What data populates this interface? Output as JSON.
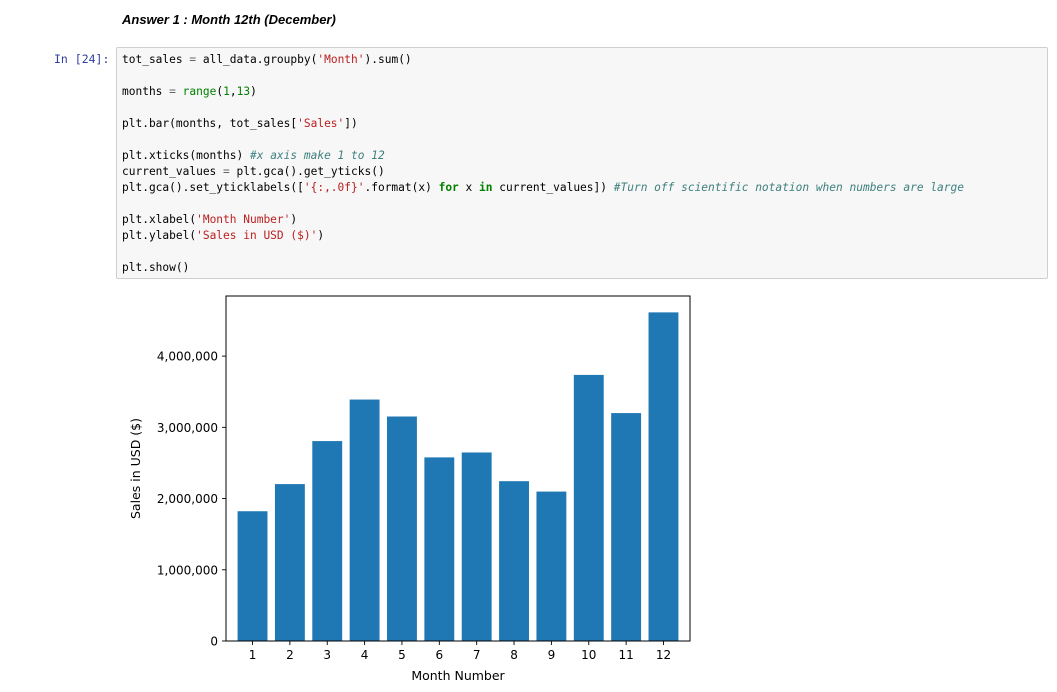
{
  "notebook": {
    "heading": "Answer 1 : Month 12th (December)",
    "prompt": "In [24]:",
    "code": {
      "l1_a": "tot_sales ",
      "l1_eq": "=",
      "l1_b": " all_data.groupby(",
      "l1_str": "'Month'",
      "l1_c": ").sum()",
      "l2_a": "months ",
      "l2_eq": "=",
      "l2_sp": " ",
      "l2_fn": "range",
      "l2_c": "(",
      "l2_n1": "1",
      "l2_comma": ",",
      "l2_n2": "13",
      "l2_d": ")",
      "l3_a": "plt.bar(months, tot_sales[",
      "l3_str": "'Sales'",
      "l3_b": "])",
      "l4_a": "plt.xticks(months) ",
      "l4_cm": "#x axis make 1 to 12",
      "l5_a": "current_values ",
      "l5_eq": "=",
      "l5_b": " plt.gca().get_yticks()",
      "l6_a": "plt.gca().set_yticklabels([",
      "l6_str": "'{:,.0f}'",
      "l6_b": ".format(x) ",
      "l6_for": "for",
      "l6_c": " x ",
      "l6_in": "in",
      "l6_d": " current_values]) ",
      "l6_cm": "#Turn off scientific notation when numbers are large",
      "l7_a": "plt.xlabel(",
      "l7_str": "'Month Number'",
      "l7_b": ")",
      "l8_a": "plt.ylabel(",
      "l8_str": "'Sales in USD ($)'",
      "l8_b": ")",
      "l9_a": "plt.show()"
    }
  },
  "chart_data": {
    "type": "bar",
    "categories": [
      "1",
      "2",
      "3",
      "4",
      "5",
      "6",
      "7",
      "8",
      "9",
      "10",
      "11",
      "12"
    ],
    "values": [
      1822000,
      2203000,
      2807000,
      3390000,
      3152000,
      2578000,
      2647000,
      2244000,
      2098000,
      3736000,
      3200000,
      4614000
    ],
    "xlabel": "Month Number",
    "ylabel": "Sales in USD ($)",
    "yticks": [
      0,
      1000000,
      2000000,
      3000000,
      4000000
    ],
    "ytick_labels": [
      "0",
      "1,000,000",
      "2,000,000",
      "3,000,000",
      "4,000,000"
    ],
    "ylim": [
      0,
      4844000
    ],
    "bar_color": "#1f77b4",
    "grid": false,
    "legend": "none"
  }
}
